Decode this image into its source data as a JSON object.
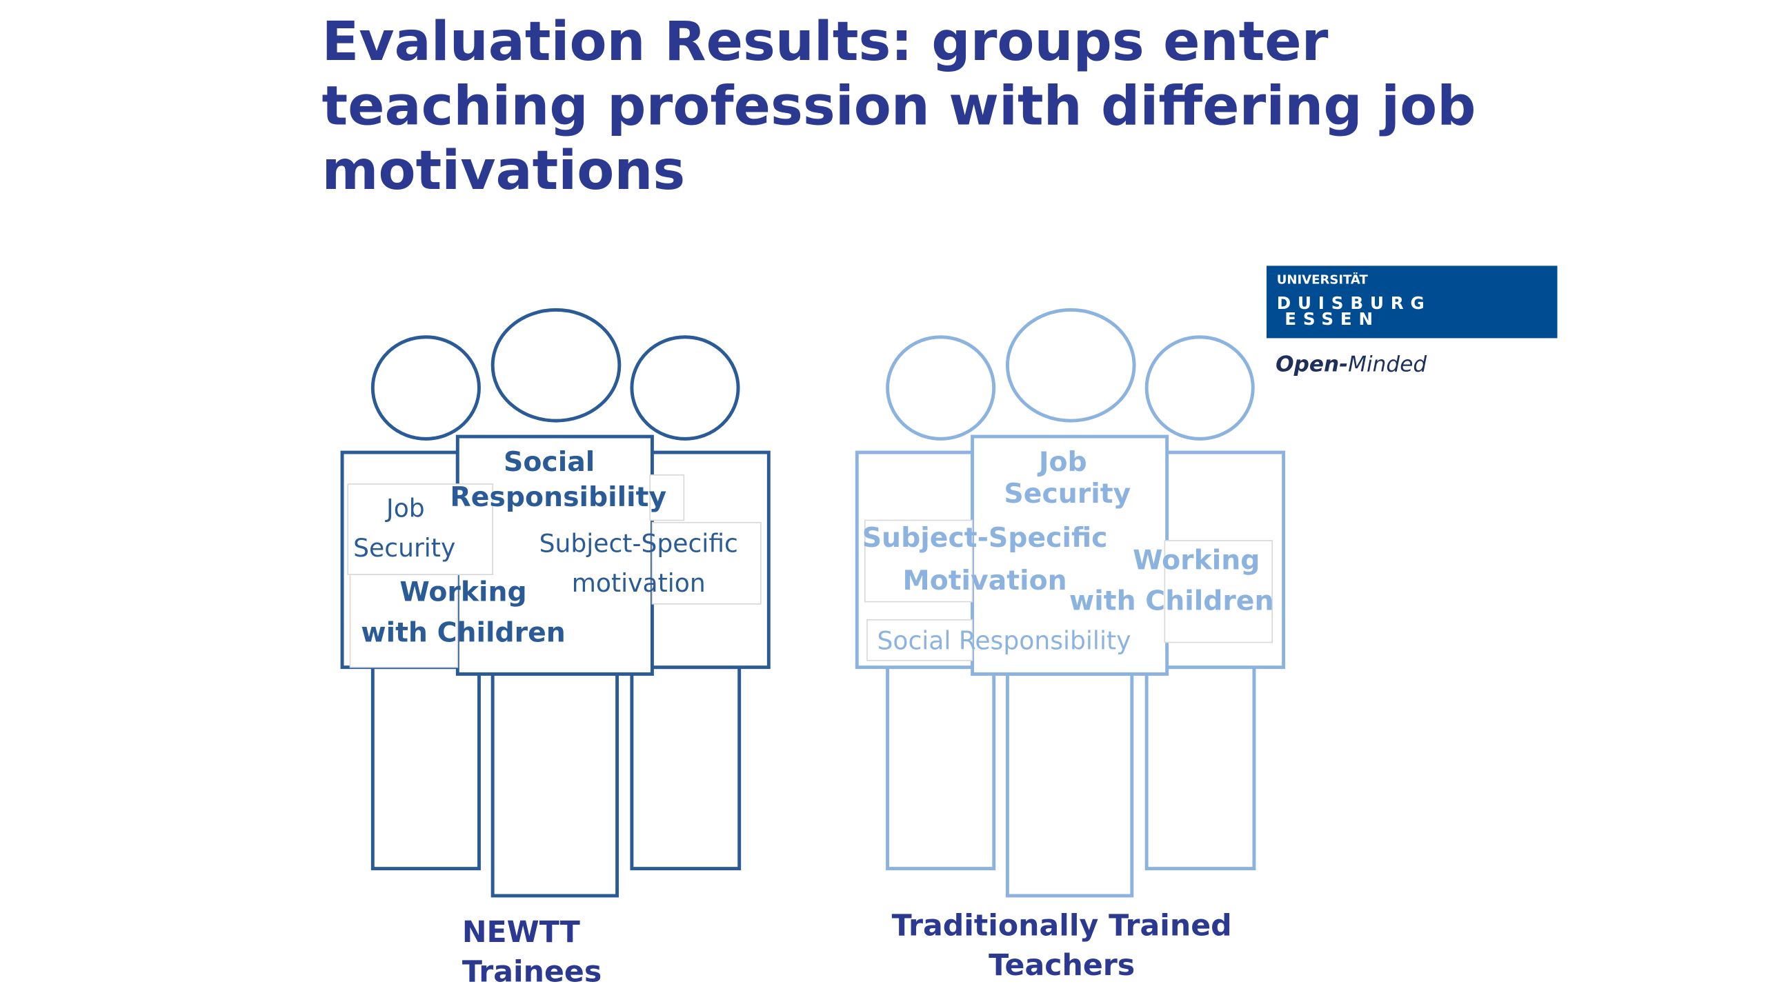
{
  "title_lines": [
    "Evaluation Results: groups enter",
    "teaching profession with differing job",
    "motivations"
  ],
  "logo": {
    "line1": "UNIVERSITÄT",
    "line2": "DUISBURG",
    "line3": "ESSEN",
    "tagline_bold": "Open-",
    "tagline": "Minded"
  },
  "groups": [
    {
      "label_lines": [
        "NEWTT",
        "Trainees"
      ],
      "color": "#2a5b96",
      "words": [
        {
          "text": "Social",
          "bold": true
        },
        {
          "text": "Responsibility",
          "bold": true
        },
        {
          "text": "Job",
          "bold": false
        },
        {
          "text": "Security",
          "bold": false
        },
        {
          "text": "Subject-Specific",
          "bold": false
        },
        {
          "text": "motivation",
          "bold": false
        },
        {
          "text": "Working",
          "bold": true
        },
        {
          "text": "with Children",
          "bold": true
        }
      ]
    },
    {
      "label_lines": [
        "Traditionally Trained",
        "Teachers"
      ],
      "color": "#8cb3e0",
      "words": [
        {
          "text": "Job",
          "bold": true
        },
        {
          "text": "Security",
          "bold": true
        },
        {
          "text": "Subject-Specific",
          "bold": true
        },
        {
          "text": "Motivation",
          "bold": true
        },
        {
          "text": "Working",
          "bold": true
        },
        {
          "text": "with Children",
          "bold": true
        },
        {
          "text": "Social Responsibility",
          "bold": false
        }
      ]
    }
  ]
}
